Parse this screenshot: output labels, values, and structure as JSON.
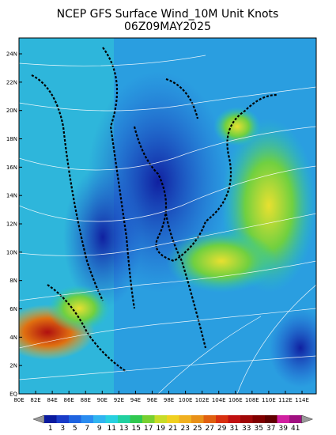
{
  "header": {
    "title": "NCEP GFS Surface Wind_10M Unit Knots",
    "subtitle": "06Z09MAY2025"
  },
  "map": {
    "lat_labels": [
      "EQ",
      "2N",
      "4N",
      "6N",
      "8N",
      "10N",
      "12N",
      "14N",
      "16N",
      "18N",
      "20N",
      "22N",
      "24N"
    ],
    "lon_labels": [
      "80E",
      "82E",
      "84E",
      "86E",
      "88E",
      "90E",
      "92E",
      "94E",
      "96E",
      "98E",
      "100E",
      "102E",
      "104E",
      "106E",
      "108E",
      "110E",
      "112E",
      "114E"
    ]
  },
  "colorbar": {
    "labels": [
      1,
      3,
      5,
      7,
      9,
      11,
      13,
      15,
      17,
      19,
      21,
      23,
      25,
      27,
      29,
      31,
      33,
      35,
      37,
      39,
      41
    ],
    "colors": [
      "#0a1a9e",
      "#1a3cc8",
      "#1f64e0",
      "#2a8cf0",
      "#30b4f0",
      "#28d0e0",
      "#20d0a0",
      "#30c850",
      "#78d030",
      "#c8dc28",
      "#f0d020",
      "#f0b020",
      "#e89018",
      "#e06010",
      "#d83010",
      "#c01010",
      "#a00808",
      "#800000",
      "#600000",
      "#d020a0",
      "#a01080"
    ]
  }
}
